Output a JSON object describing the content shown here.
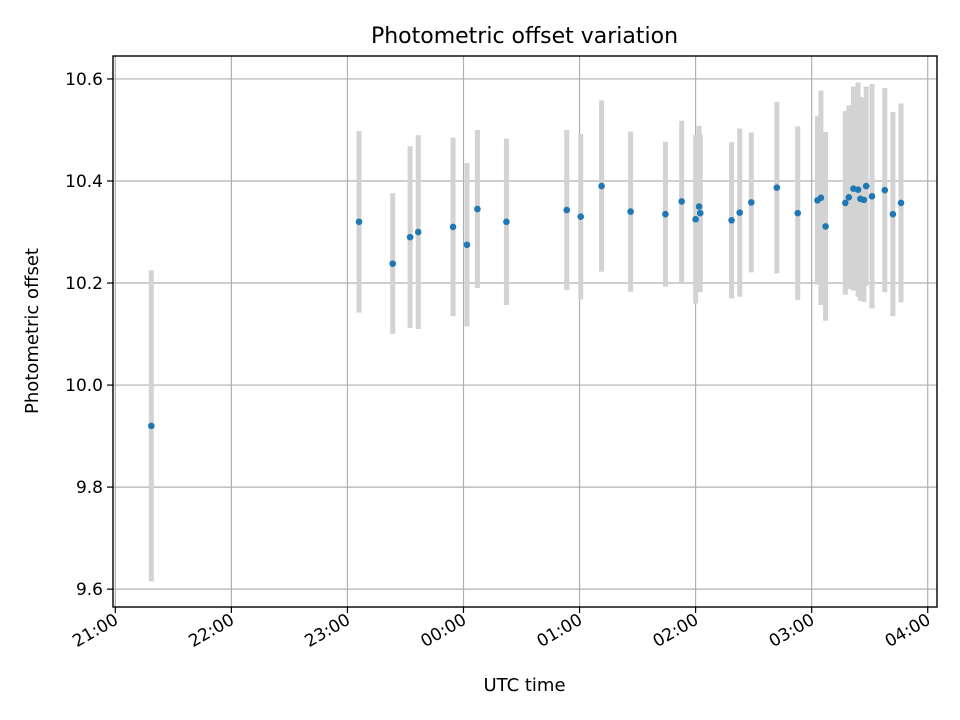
{
  "chart_data": {
    "type": "scatter",
    "title": "Photometric offset variation",
    "xlabel": "UTC time",
    "ylabel": "Photometric offset",
    "x_unit": "hours UTC (values above 24 are after midnight)",
    "xlim": [
      20.98,
      28.08
    ],
    "ylim": [
      9.565,
      10.645
    ],
    "grid": true,
    "x_ticks": [
      {
        "value": 21,
        "label": "21:00"
      },
      {
        "value": 22,
        "label": "22:00"
      },
      {
        "value": 23,
        "label": "23:00"
      },
      {
        "value": 24,
        "label": "00:00"
      },
      {
        "value": 25,
        "label": "01:00"
      },
      {
        "value": 26,
        "label": "02:00"
      },
      {
        "value": 27,
        "label": "03:00"
      },
      {
        "value": 28,
        "label": "04:00"
      }
    ],
    "y_ticks": [
      {
        "value": 9.6,
        "label": "9.6"
      },
      {
        "value": 9.8,
        "label": "9.8"
      },
      {
        "value": 10.0,
        "label": "10.0"
      },
      {
        "value": 10.2,
        "label": "10.2"
      },
      {
        "value": 10.4,
        "label": "10.4"
      },
      {
        "value": 10.6,
        "label": "10.6"
      }
    ],
    "point_color": "#1f77b4",
    "errorbar_color": "#d3d3d3",
    "points": [
      {
        "x": 21.31,
        "y": 9.92,
        "err": 0.305
      },
      {
        "x": 23.1,
        "y": 10.32,
        "err": 0.178
      },
      {
        "x": 23.39,
        "y": 10.238,
        "err": 0.138
      },
      {
        "x": 23.54,
        "y": 10.29,
        "err": 0.178
      },
      {
        "x": 23.61,
        "y": 10.3,
        "err": 0.19
      },
      {
        "x": 23.91,
        "y": 10.31,
        "err": 0.175
      },
      {
        "x": 24.03,
        "y": 10.275,
        "err": 0.16
      },
      {
        "x": 24.12,
        "y": 10.345,
        "err": 0.155
      },
      {
        "x": 24.37,
        "y": 10.32,
        "err": 0.163
      },
      {
        "x": 24.89,
        "y": 10.343,
        "err": 0.157
      },
      {
        "x": 25.01,
        "y": 10.33,
        "err": 0.162
      },
      {
        "x": 25.19,
        "y": 10.39,
        "err": 0.168
      },
      {
        "x": 25.44,
        "y": 10.34,
        "err": 0.157
      },
      {
        "x": 25.74,
        "y": 10.335,
        "err": 0.142
      },
      {
        "x": 25.88,
        "y": 10.36,
        "err": 0.158
      },
      {
        "x": 26.0,
        "y": 10.325,
        "err": 0.165
      },
      {
        "x": 26.03,
        "y": 10.35,
        "err": 0.158
      },
      {
        "x": 26.04,
        "y": 10.337,
        "err": 0.155
      },
      {
        "x": 26.31,
        "y": 10.323,
        "err": 0.153
      },
      {
        "x": 26.38,
        "y": 10.338,
        "err": 0.165
      },
      {
        "x": 26.48,
        "y": 10.358,
        "err": 0.137
      },
      {
        "x": 26.7,
        "y": 10.387,
        "err": 0.168
      },
      {
        "x": 26.88,
        "y": 10.337,
        "err": 0.17
      },
      {
        "x": 27.05,
        "y": 10.362,
        "err": 0.165
      },
      {
        "x": 27.08,
        "y": 10.367,
        "err": 0.21
      },
      {
        "x": 27.12,
        "y": 10.311,
        "err": 0.185
      },
      {
        "x": 27.29,
        "y": 10.357,
        "err": 0.18
      },
      {
        "x": 27.32,
        "y": 10.368,
        "err": 0.18
      },
      {
        "x": 27.36,
        "y": 10.385,
        "err": 0.2
      },
      {
        "x": 27.4,
        "y": 10.383,
        "err": 0.21
      },
      {
        "x": 27.42,
        "y": 10.365,
        "err": 0.2
      },
      {
        "x": 27.45,
        "y": 10.363,
        "err": 0.2
      },
      {
        "x": 27.47,
        "y": 10.39,
        "err": 0.195
      },
      {
        "x": 27.52,
        "y": 10.37,
        "err": 0.22
      },
      {
        "x": 27.63,
        "y": 10.382,
        "err": 0.2
      },
      {
        "x": 27.7,
        "y": 10.335,
        "err": 0.2
      },
      {
        "x": 27.77,
        "y": 10.357,
        "err": 0.195
      }
    ]
  }
}
